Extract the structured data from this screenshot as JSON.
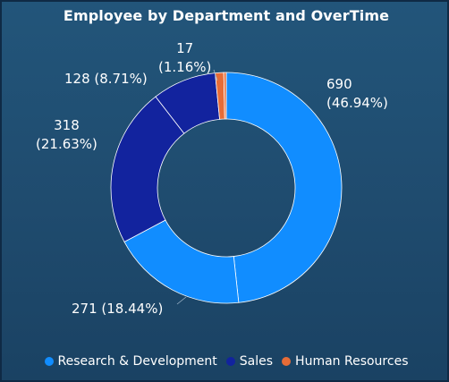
{
  "chart_data": {
    "type": "pie",
    "variant": "donut",
    "title": "Employee by Department and OverTime",
    "categories": [
      "Research & Development",
      "Sales",
      "Human Resources"
    ],
    "colors": {
      "Research & Development": "#118dff",
      "Sales": "#12239e",
      "Human Resources": "#e66c37"
    },
    "slices": [
      {
        "category": "Research & Development",
        "value": 690,
        "percent": "46.94%",
        "label": "690\n(46.94%)"
      },
      {
        "category": "Research & Development",
        "value": 271,
        "percent": "18.44%",
        "label": "271 (18.44%)"
      },
      {
        "category": "Sales",
        "value": 318,
        "percent": "21.63%",
        "label": "318\n(21.63%)"
      },
      {
        "category": "Sales",
        "value": 128,
        "percent": "8.71%",
        "label": "128 (8.71%)"
      },
      {
        "category": "Human Resources",
        "value": 17,
        "percent": "1.16%",
        "label": "17\n(1.16%)"
      },
      {
        "category": "Human Resources",
        "value": 5,
        "percent": "",
        "label": ""
      }
    ],
    "legend_position": "bottom"
  },
  "legend": {
    "items": [
      {
        "label": "Research & Development",
        "color": "#118dff"
      },
      {
        "label": "Sales",
        "color": "#12239e"
      },
      {
        "label": "Human Resources",
        "color": "#e66c37"
      }
    ]
  }
}
